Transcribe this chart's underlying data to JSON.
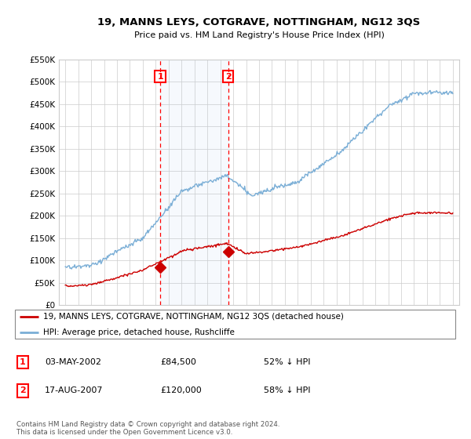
{
  "title": "19, MANNS LEYS, COTGRAVE, NOTTINGHAM, NG12 3QS",
  "subtitle": "Price paid vs. HM Land Registry's House Price Index (HPI)",
  "legend_label_red": "19, MANNS LEYS, COTGRAVE, NOTTINGHAM, NG12 3QS (detached house)",
  "legend_label_blue": "HPI: Average price, detached house, Rushcliffe",
  "footer_line1": "Contains HM Land Registry data © Crown copyright and database right 2024.",
  "footer_line2": "This data is licensed under the Open Government Licence v3.0.",
  "sale1_label": "1",
  "sale1_date": "03-MAY-2002",
  "sale1_price": "£84,500",
  "sale1_hpi": "52% ↓ HPI",
  "sale2_label": "2",
  "sale2_date": "17-AUG-2007",
  "sale2_price": "£120,000",
  "sale2_hpi": "58% ↓ HPI",
  "sale1_year": 2002.35,
  "sale2_year": 2007.62,
  "sale1_price_val": 84500,
  "sale2_price_val": 120000,
  "ylim": [
    0,
    550000
  ],
  "xlim_start": 1994.5,
  "xlim_end": 2025.5,
  "background_color": "#ffffff",
  "grid_color": "#cccccc",
  "red_color": "#cc0000",
  "blue_color": "#7aaed6"
}
